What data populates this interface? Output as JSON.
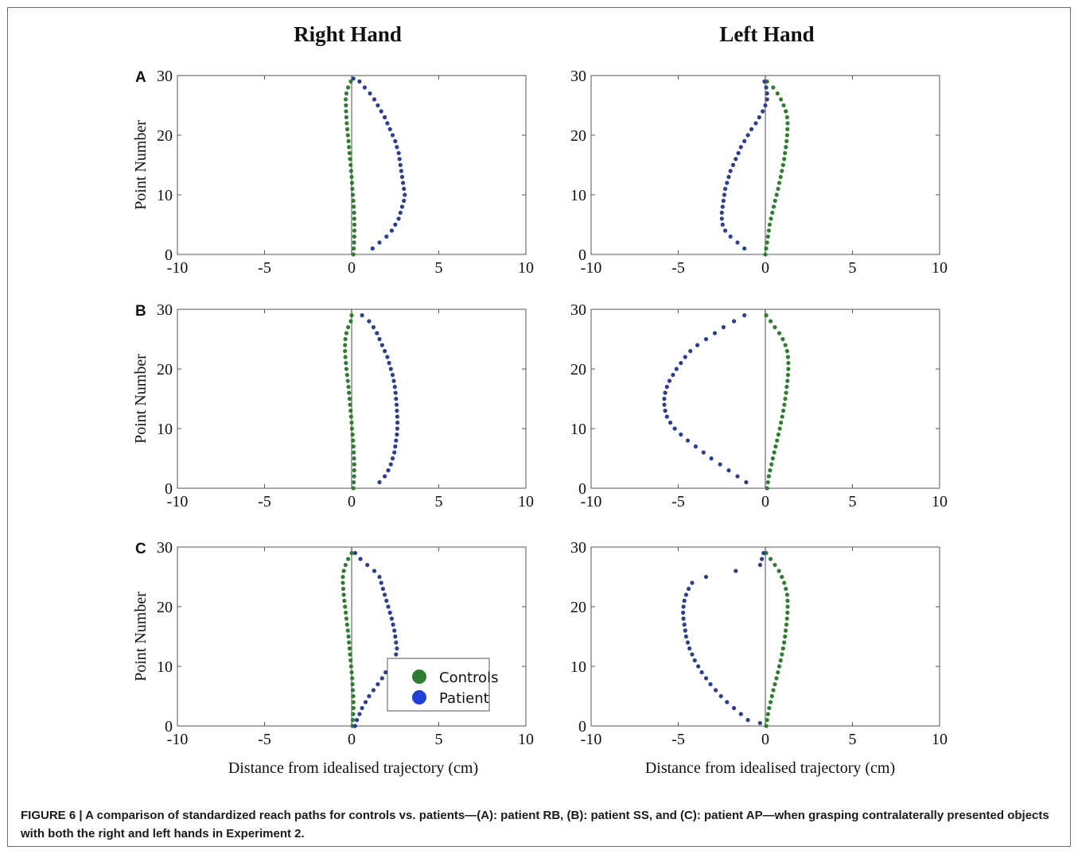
{
  "column_titles": {
    "right": "Right Hand",
    "left": "Left Hand"
  },
  "row_labels": [
    "A",
    "B",
    "C"
  ],
  "ylabel": "Point Number",
  "xlabel": "Distance from idealised trajectory (cm)",
  "x_ticks": [
    "-10",
    "-5",
    "0",
    "5",
    "10"
  ],
  "y_ticks": [
    "0",
    "10",
    "20",
    "30"
  ],
  "legend": {
    "controls": "Controls",
    "patient": "Patient"
  },
  "colors": {
    "controls": "#2e7d32",
    "patient": "#2c3e8f",
    "reference_line": "#777777",
    "axis": "#555555"
  },
  "caption": {
    "lead": "FIGURE 6 | ",
    "text": "A comparison of standardized reach paths for controls vs. patients—(A): patient RB, (B): patient SS, and (C): patient AP—when grasping contralaterally presented objects with both the right and left hands in Experiment 2."
  },
  "chart_data": [
    {
      "type": "scatter",
      "panel": "A",
      "hand": "Right Hand",
      "xlim": [
        -10,
        10
      ],
      "ylim": [
        0,
        30
      ],
      "series": [
        {
          "name": "Controls",
          "color": "#2e7d32",
          "x": [
            0.1,
            0.12,
            0.14,
            0.15,
            0.16,
            0.16,
            0.15,
            0.14,
            0.12,
            0.1,
            0.07,
            0.04,
            0.02,
            0.0,
            -0.03,
            -0.06,
            -0.09,
            -0.12,
            -0.15,
            -0.18,
            -0.22,
            -0.25,
            -0.28,
            -0.3,
            -0.32,
            -0.33,
            -0.34,
            -0.3,
            -0.2,
            -0.05
          ],
          "y": [
            0,
            1,
            2,
            3,
            4,
            5,
            6,
            7,
            8,
            9,
            10,
            11,
            12,
            13,
            14,
            15,
            16,
            17,
            18,
            19,
            20,
            21,
            22,
            23,
            24,
            25,
            26,
            27,
            28,
            29
          ]
        },
        {
          "name": "Patient",
          "color": "#2c3e8f",
          "x": [
            1.2,
            1.6,
            2.0,
            2.3,
            2.5,
            2.7,
            2.8,
            2.9,
            3.0,
            3.05,
            3.0,
            2.95,
            2.9,
            2.85,
            2.8,
            2.75,
            2.7,
            2.6,
            2.5,
            2.35,
            2.2,
            2.05,
            1.9,
            1.7,
            1.5,
            1.3,
            1.05,
            0.75,
            0.45,
            0.1
          ],
          "y": [
            1,
            2,
            3,
            4,
            5,
            6,
            7,
            8,
            9,
            10,
            11,
            12,
            13,
            14,
            15,
            16,
            17,
            18,
            19,
            20,
            21,
            22,
            23,
            24,
            25,
            26,
            27,
            28,
            29,
            29.5
          ]
        }
      ]
    },
    {
      "type": "scatter",
      "panel": "A",
      "hand": "Left Hand",
      "xlim": [
        -10,
        10
      ],
      "ylim": [
        0,
        30
      ],
      "series": [
        {
          "name": "Controls",
          "color": "#2e7d32",
          "x": [
            0.0,
            0.05,
            0.1,
            0.15,
            0.2,
            0.25,
            0.32,
            0.4,
            0.48,
            0.56,
            0.65,
            0.73,
            0.8,
            0.88,
            0.95,
            1.02,
            1.08,
            1.13,
            1.18,
            1.22,
            1.25,
            1.27,
            1.28,
            1.25,
            1.18,
            1.05,
            0.9,
            0.7,
            0.45,
            0.1
          ],
          "y": [
            0,
            1,
            2,
            3,
            4,
            5,
            6,
            7,
            8,
            9,
            10,
            11,
            12,
            13,
            14,
            15,
            16,
            17,
            18,
            19,
            20,
            21,
            22,
            23,
            24,
            25,
            26,
            27,
            28,
            29
          ]
        },
        {
          "name": "Patient",
          "color": "#2c3e8f",
          "x": [
            -1.2,
            -1.6,
            -2.0,
            -2.3,
            -2.45,
            -2.5,
            -2.5,
            -2.45,
            -2.4,
            -2.35,
            -2.3,
            -2.2,
            -2.1,
            -2.0,
            -1.85,
            -1.7,
            -1.55,
            -1.4,
            -1.2,
            -1.0,
            -0.8,
            -0.55,
            -0.35,
            -0.15,
            0.0,
            0.1,
            0.1,
            0.05,
            -0.05
          ],
          "y": [
            1,
            2,
            3,
            4,
            5,
            6,
            7,
            8,
            9,
            10,
            11,
            12,
            13,
            14,
            15,
            16,
            17,
            18,
            19,
            20,
            21,
            22,
            23,
            24,
            25,
            26,
            27,
            28,
            29
          ]
        }
      ]
    },
    {
      "type": "scatter",
      "panel": "B",
      "hand": "Right Hand",
      "xlim": [
        -10,
        10
      ],
      "ylim": [
        0,
        30
      ],
      "series": [
        {
          "name": "Controls",
          "color": "#2e7d32",
          "x": [
            0.1,
            0.12,
            0.14,
            0.15,
            0.15,
            0.14,
            0.12,
            0.1,
            0.08,
            0.05,
            0.02,
            0.0,
            -0.03,
            -0.06,
            -0.09,
            -0.12,
            -0.15,
            -0.18,
            -0.22,
            -0.26,
            -0.3,
            -0.33,
            -0.36,
            -0.38,
            -0.38,
            -0.36,
            -0.3,
            -0.2,
            -0.05,
            0.0
          ],
          "y": [
            0,
            1,
            2,
            3,
            4,
            5,
            6,
            7,
            8,
            9,
            10,
            11,
            12,
            13,
            14,
            15,
            16,
            17,
            18,
            19,
            20,
            21,
            22,
            23,
            24,
            25,
            26,
            27,
            28,
            29
          ]
        },
        {
          "name": "Patient",
          "color": "#2c3e8f",
          "x": [
            1.6,
            1.9,
            2.1,
            2.25,
            2.35,
            2.45,
            2.5,
            2.55,
            2.6,
            2.62,
            2.63,
            2.62,
            2.6,
            2.58,
            2.55,
            2.52,
            2.48,
            2.42,
            2.35,
            2.25,
            2.15,
            2.05,
            1.9,
            1.75,
            1.6,
            1.45,
            1.25,
            1.0,
            0.6
          ],
          "y": [
            1,
            2,
            3,
            4,
            5,
            6,
            7,
            8,
            9,
            10,
            11,
            12,
            13,
            14,
            15,
            16,
            17,
            18,
            19,
            20,
            21,
            22,
            23,
            24,
            25,
            26,
            27,
            28,
            29
          ]
        }
      ]
    },
    {
      "type": "scatter",
      "panel": "B",
      "hand": "Left Hand",
      "xlim": [
        -10,
        10
      ],
      "ylim": [
        0,
        30
      ],
      "series": [
        {
          "name": "Controls",
          "color": "#2e7d32",
          "x": [
            0.1,
            0.15,
            0.2,
            0.27,
            0.35,
            0.43,
            0.51,
            0.59,
            0.67,
            0.75,
            0.83,
            0.9,
            0.97,
            1.03,
            1.09,
            1.14,
            1.19,
            1.23,
            1.27,
            1.3,
            1.32,
            1.32,
            1.3,
            1.25,
            1.15,
            1.0,
            0.8,
            0.55,
            0.3,
            0.05
          ],
          "y": [
            0,
            1,
            2,
            3,
            4,
            5,
            6,
            7,
            8,
            9,
            10,
            11,
            12,
            13,
            14,
            15,
            16,
            17,
            18,
            19,
            20,
            21,
            22,
            23,
            24,
            25,
            26,
            27,
            28,
            29
          ]
        },
        {
          "name": "Patient",
          "color": "#2c3e8f",
          "x": [
            -1.1,
            -1.6,
            -2.1,
            -2.6,
            -3.1,
            -3.55,
            -4.0,
            -4.45,
            -4.85,
            -5.2,
            -5.45,
            -5.65,
            -5.75,
            -5.8,
            -5.8,
            -5.75,
            -5.65,
            -5.5,
            -5.3,
            -5.1,
            -4.85,
            -4.6,
            -4.3,
            -3.9,
            -3.4,
            -2.9,
            -2.4,
            -1.8,
            -1.2
          ],
          "y": [
            1,
            2,
            3,
            4,
            5,
            6,
            7,
            8,
            9,
            10,
            11,
            12,
            13,
            14,
            15,
            16,
            17,
            18,
            19,
            20,
            21,
            22,
            23,
            24,
            25,
            26,
            27,
            28,
            29
          ]
        }
      ]
    },
    {
      "type": "scatter",
      "panel": "C",
      "hand": "Right Hand",
      "xlim": [
        -10,
        10
      ],
      "ylim": [
        0,
        30
      ],
      "series": [
        {
          "name": "Controls",
          "color": "#2e7d32",
          "x": [
            0.05,
            0.07,
            0.09,
            0.1,
            0.1,
            0.09,
            0.07,
            0.05,
            0.03,
            0.0,
            -0.03,
            -0.06,
            -0.09,
            -0.12,
            -0.15,
            -0.18,
            -0.22,
            -0.26,
            -0.3,
            -0.34,
            -0.38,
            -0.42,
            -0.45,
            -0.48,
            -0.5,
            -0.5,
            -0.45,
            -0.35,
            -0.2,
            0.0
          ],
          "y": [
            0,
            1,
            2,
            3,
            4,
            5,
            6,
            7,
            8,
            9,
            10,
            11,
            12,
            13,
            14,
            15,
            16,
            17,
            18,
            19,
            20,
            21,
            22,
            23,
            24,
            25,
            26,
            27,
            28,
            29
          ]
        },
        {
          "name": "Patient",
          "color": "#2c3e8f",
          "x": [
            0.2,
            0.3,
            0.45,
            0.6,
            0.8,
            1.0,
            1.25,
            1.5,
            1.75,
            1.95,
            2.15,
            2.35,
            2.55,
            2.6,
            2.55,
            2.5,
            2.45,
            2.38,
            2.3,
            2.2,
            2.1,
            2.0,
            1.9,
            1.8,
            1.7,
            1.6,
            1.3,
            0.9,
            0.5,
            0.2
          ],
          "y": [
            0,
            1,
            2,
            3,
            4,
            5,
            6,
            7,
            8,
            9,
            10,
            11,
            12,
            13,
            14,
            15,
            16,
            17,
            18,
            19,
            20,
            21,
            22,
            23,
            24,
            25,
            26,
            27,
            28,
            29
          ]
        }
      ]
    },
    {
      "type": "scatter",
      "panel": "C",
      "hand": "Left Hand",
      "xlim": [
        -10,
        10
      ],
      "ylim": [
        0,
        30
      ],
      "series": [
        {
          "name": "Controls",
          "color": "#2e7d32",
          "x": [
            0.05,
            0.1,
            0.15,
            0.22,
            0.3,
            0.38,
            0.46,
            0.55,
            0.64,
            0.72,
            0.8,
            0.88,
            0.95,
            1.02,
            1.08,
            1.13,
            1.17,
            1.21,
            1.24,
            1.27,
            1.28,
            1.28,
            1.25,
            1.18,
            1.08,
            0.95,
            0.78,
            0.55,
            0.3,
            0.05
          ],
          "y": [
            0,
            1,
            2,
            3,
            4,
            5,
            6,
            7,
            8,
            9,
            10,
            11,
            12,
            13,
            14,
            15,
            16,
            17,
            18,
            19,
            20,
            21,
            22,
            23,
            24,
            25,
            26,
            27,
            28,
            29
          ]
        },
        {
          "name": "Patient",
          "color": "#2c3e8f",
          "x": [
            -0.3,
            -1.0,
            -1.4,
            -1.8,
            -2.2,
            -2.55,
            -2.85,
            -3.15,
            -3.4,
            -3.65,
            -3.85,
            -4.05,
            -4.2,
            -4.35,
            -4.45,
            -4.55,
            -4.6,
            -4.65,
            -4.7,
            -4.72,
            -4.7,
            -4.65,
            -4.55,
            -4.4,
            -4.2,
            -3.4,
            -1.7,
            -0.3,
            -0.2,
            -0.1
          ],
          "y": [
            0.5,
            1,
            2,
            3,
            4,
            5,
            6,
            7,
            8,
            9,
            10,
            11,
            12,
            13,
            14,
            15,
            16,
            17,
            18,
            19,
            20,
            21,
            22,
            23,
            24,
            25,
            26,
            27,
            28,
            29
          ]
        }
      ]
    }
  ]
}
